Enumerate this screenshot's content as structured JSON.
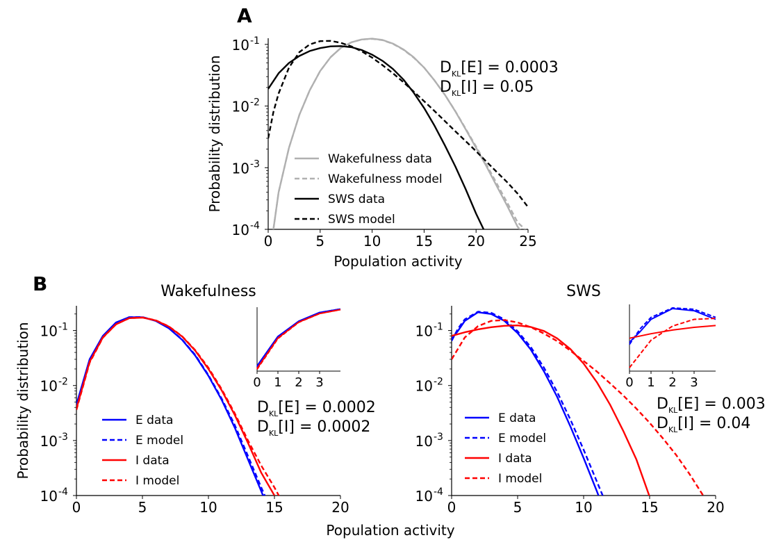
{
  "panels": {
    "A": {
      "letter": "A"
    },
    "B": {
      "letter": "B"
    }
  },
  "chart_data": [
    {
      "id": "A",
      "type": "line",
      "title": "",
      "xlabel": "Population activity",
      "ylabel": "Probability distribution",
      "xlim": [
        0,
        25
      ],
      "ylim_log10": [
        -4,
        -0.9
      ],
      "yscale": "log",
      "xticks": [
        0,
        5,
        10,
        15,
        20,
        25
      ],
      "xticklabels": [
        "0",
        "5",
        "10",
        "15",
        "20",
        "25"
      ],
      "yticks_log10": [
        -4,
        -3,
        -2,
        -1
      ],
      "yticklabels": [
        "10",
        "10",
        "10",
        "10"
      ],
      "yticklabel_exponents": [
        "-4",
        "-3",
        "-2",
        "-1"
      ],
      "legend_position": "lower-center",
      "annotations": [
        {
          "main": "D",
          "sub": "KL",
          "rest": "[E] = 0.0003"
        },
        {
          "main": "D",
          "sub": "KL",
          "rest": "[I] = 0.05"
        }
      ],
      "series": [
        {
          "name": "Wakefulness data",
          "color": "#b0b0b0",
          "dash": "solid",
          "x": [
            0.5,
            1,
            2,
            3,
            4,
            5,
            6,
            7,
            8,
            9,
            10,
            11,
            12,
            13,
            14,
            15,
            16,
            17,
            18,
            19,
            20,
            21,
            22,
            23,
            24,
            25
          ],
          "y": [
            0.0001,
            0.0004,
            0.0021,
            0.0072,
            0.018,
            0.037,
            0.062,
            0.088,
            0.108,
            0.12,
            0.124,
            0.118,
            0.103,
            0.083,
            0.062,
            0.042,
            0.026,
            0.0152,
            0.0082,
            0.0042,
            0.0021,
            0.00105,
            0.0005,
            0.00024,
            0.00011,
            7e-05
          ]
        },
        {
          "name": "Wakefulness model",
          "color": "#b0b0b0",
          "dash": "dashed",
          "x": [
            0.5,
            1,
            2,
            3,
            4,
            5,
            6,
            7,
            8,
            9,
            10,
            11,
            12,
            13,
            14,
            15,
            16,
            17,
            18,
            19,
            20,
            21,
            22,
            23,
            24,
            25
          ],
          "y": [
            0.0001,
            0.0004,
            0.0021,
            0.0072,
            0.018,
            0.037,
            0.062,
            0.088,
            0.108,
            0.12,
            0.123,
            0.117,
            0.102,
            0.082,
            0.061,
            0.042,
            0.026,
            0.0152,
            0.0083,
            0.0043,
            0.0022,
            0.00112,
            0.00055,
            0.00027,
            0.00013,
            9e-05
          ]
        },
        {
          "name": "SWS data",
          "color": "#000000",
          "dash": "solid",
          "x": [
            0,
            1,
            2,
            3,
            4,
            5,
            6,
            7,
            8,
            9,
            10,
            11,
            12,
            13,
            14,
            15,
            16,
            17,
            18,
            19,
            20,
            21,
            22
          ],
          "y": [
            0.019,
            0.034,
            0.05,
            0.065,
            0.078,
            0.087,
            0.093,
            0.094,
            0.09,
            0.081,
            0.068,
            0.054,
            0.04,
            0.027,
            0.0165,
            0.0093,
            0.0048,
            0.0023,
            0.00105,
            0.00045,
            0.00018,
            8e-05,
            3e-05
          ]
        },
        {
          "name": "SWS model",
          "color": "#000000",
          "dash": "dashed",
          "x": [
            0,
            0.5,
            1,
            2,
            3,
            4,
            5,
            6,
            7,
            8,
            9,
            10,
            11,
            12,
            13,
            14,
            15,
            16,
            17,
            18,
            19,
            20,
            21,
            22,
            23,
            24,
            25
          ],
          "y": [
            0.003,
            0.008,
            0.016,
            0.042,
            0.075,
            0.1,
            0.113,
            0.114,
            0.106,
            0.093,
            0.077,
            0.061,
            0.046,
            0.034,
            0.0245,
            0.0172,
            0.012,
            0.0083,
            0.0057,
            0.0039,
            0.0027,
            0.00185,
            0.00125,
            0.00085,
            0.00058,
            0.00038,
            0.00023
          ]
        }
      ]
    },
    {
      "id": "B-left",
      "type": "line",
      "title": "Wakefulness",
      "xlabel": "",
      "ylabel": "Probability distribution",
      "xlim": [
        0,
        20
      ],
      "ylim_log10": [
        -4,
        -0.55
      ],
      "yscale": "log",
      "xticks": [
        0,
        5,
        10,
        15,
        20
      ],
      "xticklabels": [
        "0",
        "5",
        "10",
        "15",
        "20"
      ],
      "yticks_log10": [
        -4,
        -3,
        -2,
        -1
      ],
      "yticklabels": [
        "10",
        "10",
        "10",
        "10"
      ],
      "yticklabel_exponents": [
        "-4",
        "-3",
        "-2",
        "-1"
      ],
      "legend_position": "lower-left",
      "annotations": [
        {
          "main": "D",
          "sub": "KL",
          "rest": "[E] = 0.0002"
        },
        {
          "main": "D",
          "sub": "KL",
          "rest": "[I] = 0.0002"
        }
      ],
      "inset": {
        "xticks": [
          0,
          1,
          2,
          3
        ],
        "xticklabels": [
          "0",
          "1",
          "2",
          "3"
        ],
        "xlim": [
          0,
          4
        ]
      },
      "series": [
        {
          "name": "E data",
          "color": "#0000ff",
          "dash": "solid",
          "x": [
            0,
            1,
            2,
            3,
            4,
            5,
            6,
            7,
            8,
            9,
            10,
            11,
            12,
            13,
            14,
            15,
            15.3
          ],
          "y": [
            0.0045,
            0.03,
            0.08,
            0.14,
            0.175,
            0.175,
            0.15,
            0.11,
            0.068,
            0.035,
            0.015,
            0.0055,
            0.0017,
            0.00045,
            0.00012,
            3e-05,
            1e-05
          ]
        },
        {
          "name": "E model",
          "color": "#0000ff",
          "dash": "dashed",
          "x": [
            0,
            1,
            2,
            3,
            4,
            5,
            6,
            7,
            8,
            9,
            10,
            11,
            12,
            13,
            14,
            15,
            15.6
          ],
          "y": [
            0.0042,
            0.029,
            0.079,
            0.139,
            0.175,
            0.176,
            0.151,
            0.111,
            0.069,
            0.036,
            0.0155,
            0.0058,
            0.0019,
            0.00052,
            0.00014,
            4e-05,
            1e-05
          ]
        },
        {
          "name": "I data",
          "color": "#ff0000",
          "dash": "solid",
          "x": [
            0,
            1,
            2,
            3,
            4,
            5,
            6,
            7,
            8,
            9,
            10,
            11,
            12,
            13,
            14,
            15,
            16
          ],
          "y": [
            0.0038,
            0.027,
            0.075,
            0.13,
            0.168,
            0.172,
            0.153,
            0.118,
            0.078,
            0.043,
            0.02,
            0.0082,
            0.0029,
            0.0009,
            0.00026,
            0.0001,
            2e-05
          ]
        },
        {
          "name": "I model",
          "color": "#ff0000",
          "dash": "dashed",
          "x": [
            0,
            1,
            2,
            3,
            4,
            5,
            6,
            7,
            8,
            9,
            10,
            11,
            12,
            13,
            14,
            15,
            16,
            16.4
          ],
          "y": [
            0.0036,
            0.026,
            0.074,
            0.13,
            0.168,
            0.173,
            0.154,
            0.119,
            0.079,
            0.044,
            0.021,
            0.0086,
            0.0031,
            0.001,
            0.00035,
            0.00014,
            5e-05,
            2e-05
          ]
        }
      ]
    },
    {
      "id": "B-right",
      "type": "line",
      "title": "SWS",
      "xlabel": "",
      "ylabel": "",
      "xlim": [
        0,
        20
      ],
      "ylim_log10": [
        -4,
        -0.55
      ],
      "yscale": "log",
      "xticks": [
        0,
        5,
        10,
        15,
        20
      ],
      "xticklabels": [
        "0",
        "5",
        "10",
        "15",
        "20"
      ],
      "yticks_log10": [
        -4,
        -3,
        -2,
        -1
      ],
      "yticklabels": [
        "10",
        "10",
        "10",
        "10"
      ],
      "yticklabel_exponents": [
        "-4",
        "-3",
        "-2",
        "-1"
      ],
      "legend_position": "lower-left",
      "annotations": [
        {
          "main": "D",
          "sub": "KL",
          "rest": "[E] = 0.003"
        },
        {
          "main": "D",
          "sub": "KL",
          "rest": "[I] = 0.04"
        }
      ],
      "inset": {
        "xticks": [
          0,
          1,
          2,
          3
        ],
        "xticklabels": [
          "0",
          "1",
          "2",
          "3"
        ],
        "xlim": [
          0,
          4
        ]
      },
      "series": [
        {
          "name": "E data",
          "color": "#0000ff",
          "dash": "solid",
          "x": [
            0,
            0.5,
            1,
            2,
            3,
            4,
            5,
            6,
            7,
            8,
            9,
            10,
            11,
            12,
            12.4
          ],
          "y": [
            0.07,
            0.1,
            0.15,
            0.215,
            0.2,
            0.15,
            0.09,
            0.045,
            0.018,
            0.0062,
            0.0018,
            0.00048,
            0.00012,
            2.8e-05,
            1e-05
          ]
        },
        {
          "name": "E model",
          "color": "#0000ff",
          "dash": "dashed",
          "x": [
            0,
            0.5,
            1,
            2,
            3,
            4,
            5,
            6,
            7,
            8,
            9,
            10,
            11,
            12,
            13,
            13.4
          ],
          "y": [
            0.065,
            0.11,
            0.16,
            0.22,
            0.21,
            0.16,
            0.097,
            0.05,
            0.021,
            0.0076,
            0.0024,
            0.00068,
            0.00018,
            4.8e-05,
            1.2e-05,
            6e-06
          ]
        },
        {
          "name": "I data",
          "color": "#ff0000",
          "dash": "solid",
          "x": [
            0,
            1,
            2,
            3,
            4,
            5,
            6,
            7,
            8,
            9,
            10,
            11,
            12,
            13,
            14,
            15,
            15.6
          ],
          "y": [
            0.08,
            0.093,
            0.105,
            0.115,
            0.122,
            0.124,
            0.116,
            0.098,
            0.072,
            0.046,
            0.025,
            0.0115,
            0.0045,
            0.0015,
            0.00045,
            9.5e-05,
            2e-05
          ]
        },
        {
          "name": "I model",
          "color": "#ff0000",
          "dash": "dashed",
          "x": [
            0,
            1,
            2,
            3,
            4,
            5,
            6,
            7,
            8,
            9,
            10,
            11,
            12,
            13,
            14,
            15,
            16,
            17,
            18,
            19,
            19.5
          ],
          "y": [
            0.03,
            0.075,
            0.12,
            0.15,
            0.155,
            0.14,
            0.115,
            0.088,
            0.064,
            0.043,
            0.028,
            0.018,
            0.011,
            0.0066,
            0.0038,
            0.0021,
            0.0011,
            0.00055,
            0.00025,
            0.000105,
            6e-05
          ]
        }
      ]
    }
  ],
  "shared": {
    "b_xlabel": "Population activity"
  }
}
